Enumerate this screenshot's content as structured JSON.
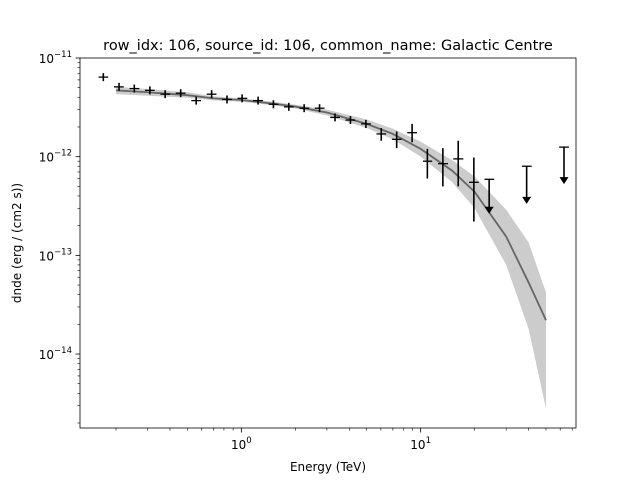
{
  "chart_data": {
    "type": "scatter",
    "title": "row_idx: 106, source_id: 106, common_name: Galactic Centre",
    "xlabel": "Energy (TeV)",
    "ylabel": "dnde (erg / (cm2 s))",
    "xscale": "log",
    "yscale": "log",
    "xlim": [
      0.126,
      73.5
    ],
    "ylim": [
      1.78e-15,
      1e-11
    ],
    "grid": false,
    "x_major_ticks": [
      {
        "value": 1,
        "base": "10",
        "exp": "0"
      },
      {
        "value": 10,
        "base": "10",
        "exp": "1"
      }
    ],
    "y_major_ticks": [
      {
        "value": 1e-11,
        "base": "10",
        "exp": "−11"
      },
      {
        "value": 1e-12,
        "base": "10",
        "exp": "−12"
      },
      {
        "value": 1e-13,
        "base": "10",
        "exp": "−13"
      },
      {
        "value": 1e-14,
        "base": "10",
        "exp": "−14"
      }
    ],
    "colors": {
      "points": "#000000",
      "model_line": "#666666",
      "model_band": "#cccccc"
    },
    "points": [
      {
        "x": 0.17,
        "y": 6.4e-12,
        "ylo": 6.4e-12,
        "yhi": 6.4e-12,
        "xlo": 0.16,
        "xhi": 0.181,
        "ul": false
      },
      {
        "x": 0.208,
        "y": 5.1e-12,
        "ylo": 5.1e-12,
        "yhi": 5.1e-12,
        "xlo": 0.195,
        "xhi": 0.221,
        "ul": false
      },
      {
        "x": 0.253,
        "y": 4.9e-12,
        "ylo": 4.9e-12,
        "yhi": 4.9e-12,
        "xlo": 0.238,
        "xhi": 0.27,
        "ul": false
      },
      {
        "x": 0.309,
        "y": 4.7e-12,
        "ylo": 4.7e-12,
        "yhi": 4.7e-12,
        "xlo": 0.29,
        "xhi": 0.329,
        "ul": false
      },
      {
        "x": 0.376,
        "y": 4.3e-12,
        "ylo": 4.3e-12,
        "yhi": 4.3e-12,
        "xlo": 0.354,
        "xhi": 0.401,
        "ul": false
      },
      {
        "x": 0.459,
        "y": 4.4e-12,
        "ylo": 4.4e-12,
        "yhi": 4.4e-12,
        "xlo": 0.431,
        "xhi": 0.489,
        "ul": false
      },
      {
        "x": 0.56,
        "y": 3.7e-12,
        "ylo": 3.7e-12,
        "yhi": 3.7e-12,
        "xlo": 0.526,
        "xhi": 0.596,
        "ul": false
      },
      {
        "x": 0.683,
        "y": 4.3e-12,
        "ylo": 4.3e-12,
        "yhi": 4.3e-12,
        "xlo": 0.641,
        "xhi": 0.727,
        "ul": false
      },
      {
        "x": 0.832,
        "y": 3.8e-12,
        "ylo": 3.8e-12,
        "yhi": 3.8e-12,
        "xlo": 0.782,
        "xhi": 0.886,
        "ul": false
      },
      {
        "x": 1.01,
        "y": 3.9e-12,
        "ylo": 3.9e-12,
        "yhi": 3.9e-12,
        "xlo": 0.953,
        "xhi": 1.08,
        "ul": false
      },
      {
        "x": 1.24,
        "y": 3.7e-12,
        "ylo": 3.7e-12,
        "yhi": 3.7e-12,
        "xlo": 1.16,
        "xhi": 1.32,
        "ul": false
      },
      {
        "x": 1.51,
        "y": 3.4e-12,
        "ylo": 3.4e-12,
        "yhi": 3.4e-12,
        "xlo": 1.42,
        "xhi": 1.61,
        "ul": false
      },
      {
        "x": 1.84,
        "y": 3.2e-12,
        "ylo": 3.2e-12,
        "yhi": 3.2e-12,
        "xlo": 1.73,
        "xhi": 1.96,
        "ul": false
      },
      {
        "x": 2.24,
        "y": 3.1e-12,
        "ylo": 3.1e-12,
        "yhi": 3.1e-12,
        "xlo": 2.11,
        "xhi": 2.39,
        "ul": false
      },
      {
        "x": 2.73,
        "y": 3.1e-12,
        "ylo": 3.1e-12,
        "yhi": 3.1e-12,
        "xlo": 2.57,
        "xhi": 2.91,
        "ul": false
      },
      {
        "x": 3.33,
        "y": 2.5e-12,
        "ylo": 2.5e-12,
        "yhi": 2.5e-12,
        "xlo": 3.13,
        "xhi": 3.55,
        "ul": false
      },
      {
        "x": 4.06,
        "y": 2.35e-12,
        "ylo": 2.2e-12,
        "yhi": 2.55e-12,
        "xlo": 3.81,
        "xhi": 4.32,
        "ul": false
      },
      {
        "x": 4.95,
        "y": 2.15e-12,
        "ylo": 1.95e-12,
        "yhi": 2.35e-12,
        "xlo": 4.65,
        "xhi": 5.27,
        "ul": false
      },
      {
        "x": 6.03,
        "y": 1.7e-12,
        "ylo": 1.45e-12,
        "yhi": 1.95e-12,
        "xlo": 5.67,
        "xhi": 6.42,
        "ul": false
      },
      {
        "x": 7.35,
        "y": 1.5e-12,
        "ylo": 1.22e-12,
        "yhi": 1.8e-12,
        "xlo": 6.91,
        "xhi": 7.83,
        "ul": false
      },
      {
        "x": 8.96,
        "y": 1.75e-12,
        "ylo": 1.4e-12,
        "yhi": 2.15e-12,
        "xlo": 8.42,
        "xhi": 9.55,
        "ul": false
      },
      {
        "x": 10.9,
        "y": 9e-13,
        "ylo": 6e-13,
        "yhi": 1.2e-12,
        "xlo": 10.3,
        "xhi": 11.6,
        "ul": false
      },
      {
        "x": 13.3,
        "y": 8.5e-13,
        "ylo": 5e-13,
        "yhi": 1.22e-12,
        "xlo": 12.5,
        "xhi": 14.2,
        "ul": false
      },
      {
        "x": 16.2,
        "y": 9.5e-13,
        "ylo": 5e-13,
        "yhi": 1.45e-12,
        "xlo": 15.2,
        "xhi": 17.3,
        "ul": false
      },
      {
        "x": 19.8,
        "y": 5.5e-13,
        "ylo": 2.2e-13,
        "yhi": 9.8e-13,
        "xlo": 18.6,
        "xhi": 21.1,
        "ul": false
      },
      {
        "x": 24.1,
        "y": 5.9e-13,
        "ylo": 2.7e-13,
        "yhi": 5.9e-13,
        "xlo": 22.7,
        "xhi": 25.7,
        "ul": true
      },
      {
        "x": 39.0,
        "y": 8e-13,
        "ylo": 3.4e-13,
        "yhi": 8e-13,
        "xlo": 36.7,
        "xhi": 41.6,
        "ul": true
      },
      {
        "x": 63.0,
        "y": 1.25e-12,
        "ylo": 5.4e-13,
        "yhi": 1.25e-12,
        "xlo": 59.2,
        "xhi": 67.1,
        "ul": true
      }
    ],
    "model": {
      "type": "exponential cutoff power law",
      "x": [
        0.2,
        0.3,
        0.5,
        0.7,
        1.0,
        1.5,
        2.0,
        3.0,
        5.0,
        7.0,
        10.0,
        15.0,
        20.0,
        30.0,
        40.0,
        50.0
      ],
      "y": [
        4.7e-12,
        4.5e-12,
        4.2e-12,
        3.9e-12,
        3.75e-12,
        3.45e-12,
        3.22e-12,
        2.8e-12,
        2.15e-12,
        1.7e-12,
        1.2e-12,
        7.2e-13,
        4.4e-13,
        1.55e-13,
        5.3e-14,
        2.2e-14
      ],
      "y_lo": [
        4.3e-12,
        4.15e-12,
        3.95e-12,
        3.72e-12,
        3.6e-12,
        3.32e-12,
        3.08e-12,
        2.62e-12,
        1.95e-12,
        1.5e-12,
        1e-12,
        5.5e-13,
        3e-13,
        8e-14,
        1.8e-14,
        2.8e-15
      ],
      "y_hi": [
        5.1e-12,
        4.85e-12,
        4.5e-12,
        4.1e-12,
        3.9e-12,
        3.6e-12,
        3.36e-12,
        3e-12,
        2.38e-12,
        1.92e-12,
        1.42e-12,
        9.2e-13,
        6.3e-13,
        2.9e-13,
        1.35e-13,
        4.2e-14
      ]
    }
  }
}
